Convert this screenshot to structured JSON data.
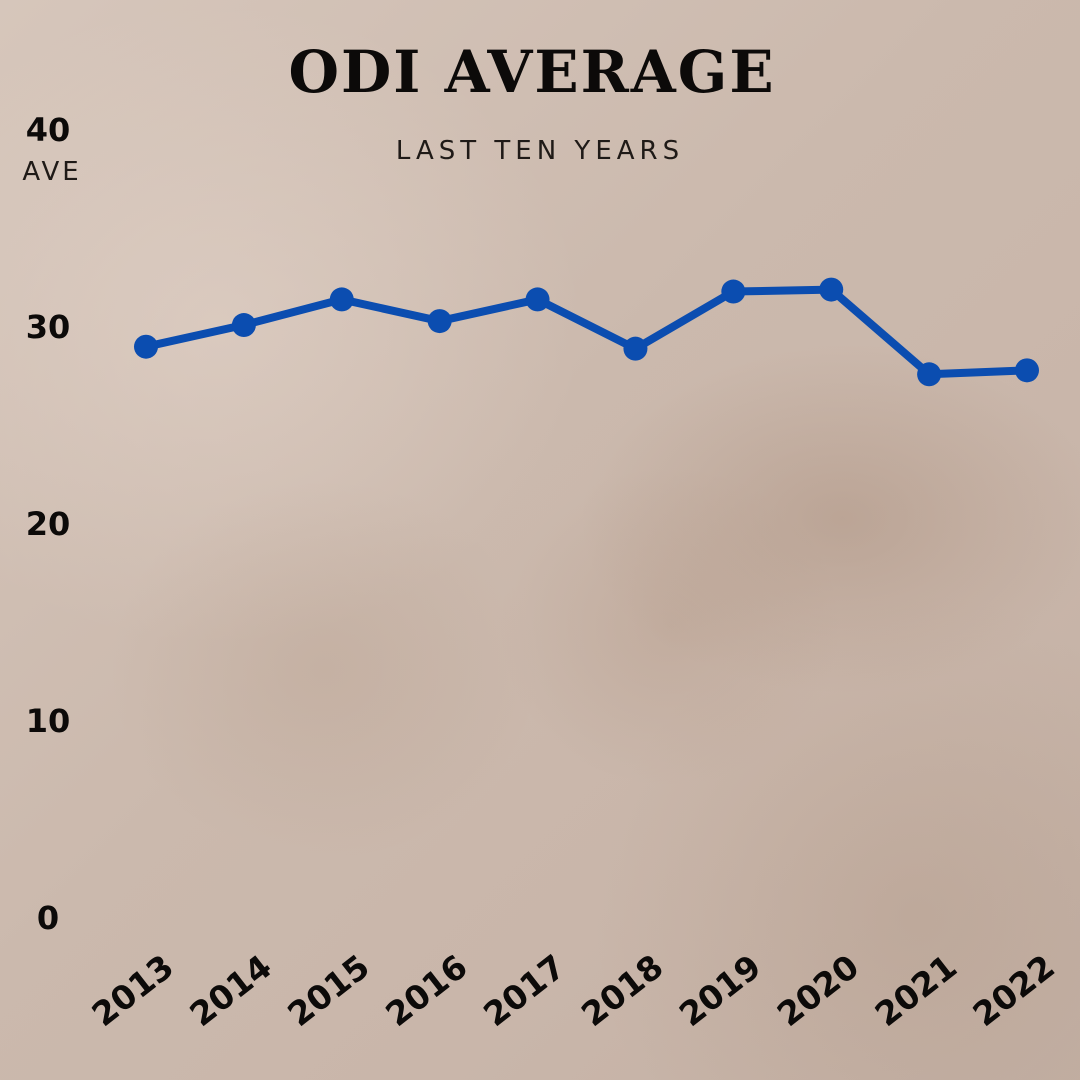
{
  "chart_data": {
    "type": "line",
    "title": "ODI AVERAGE",
    "subtitle": "LAST TEN YEARS",
    "ylabel": "AVE",
    "xlabel": "",
    "categories": [
      "2013",
      "2014",
      "2015",
      "2016",
      "2017",
      "2018",
      "2019",
      "2020",
      "2021",
      "2022"
    ],
    "series": [
      {
        "values": [
          29.0,
          30.1,
          31.4,
          30.3,
          31.4,
          28.9,
          31.8,
          31.9,
          27.6,
          27.8
        ]
      }
    ],
    "ylim": [
      0,
      40
    ],
    "yticks": [
      "0",
      "10",
      "20",
      "30",
      "40"
    ],
    "grid": false,
    "legend": "none"
  },
  "colors": {
    "line": "#0b4db0",
    "text": "#0c0a09"
  }
}
